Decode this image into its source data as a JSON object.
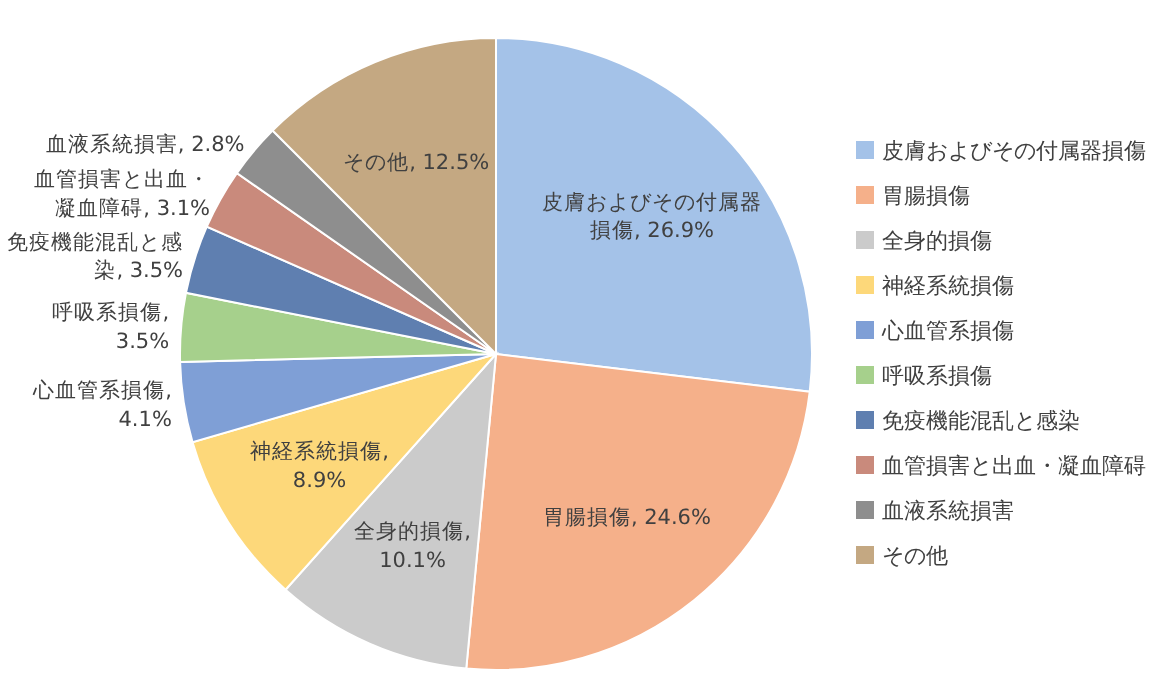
{
  "chart_data": {
    "type": "pie",
    "categories": [
      "皮膚およびその付属器損傷",
      "胃腸損傷",
      "全身的損傷",
      "神経系統損傷",
      "心血管系損傷",
      "呼吸系損傷",
      "免疫機能混乱と感染",
      "血管損害と出血・凝血障碍",
      "血液系統損害",
      "その他"
    ],
    "values": [
      26.9,
      24.6,
      10.1,
      8.9,
      4.1,
      3.5,
      3.5,
      3.1,
      2.8,
      12.5
    ],
    "value_labels": [
      "皮膚およびその付属器損傷, 26.9%",
      "胃腸損傷, 24.6%",
      "全身的損傷, 10.1%",
      "神経系統損傷, 8.9%",
      "心血管系損傷, 4.1%",
      "呼吸系損傷, 3.5%",
      "免疫機能混乱と感染, 3.5%",
      "血管損害と出血・凝血障碍, 3.1%",
      "血液系統損害, 2.8%",
      "その他, 12.5%"
    ],
    "colors": [
      "#a4c2e8",
      "#f5b08a",
      "#cbcbcb",
      "#fdd87a",
      "#7f9fd6",
      "#a6d08c",
      "#5f7fb0",
      "#c98a7c",
      "#8e8e8e",
      "#c4a882"
    ],
    "legend": "right"
  }
}
